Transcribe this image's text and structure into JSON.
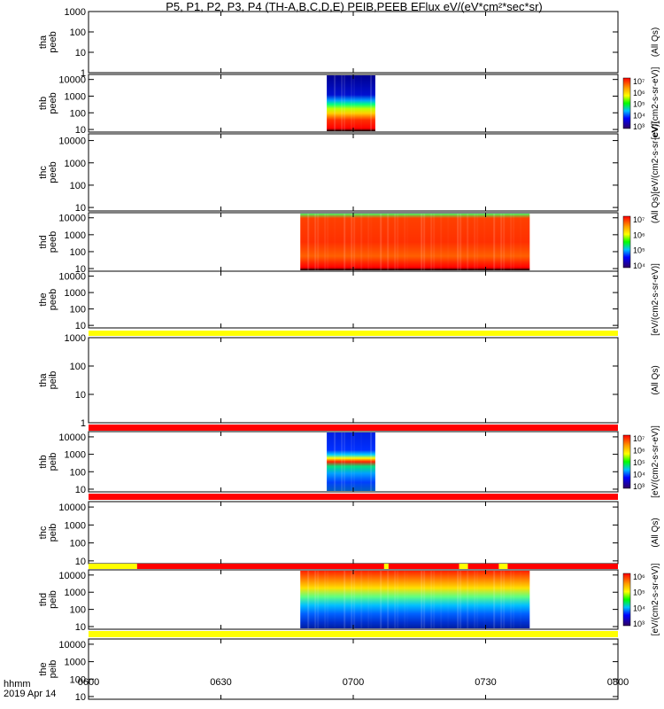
{
  "title": "P5, P1, P2, P3, P4 (TH-A,B,C,D,E) PEIB,PEEB EFlux eV/(eV*cm²*sec*sr)",
  "time_axis": {
    "label": "hhmm",
    "date": "2019 Apr 14",
    "ticks": [
      "0600",
      "0630",
      "0700",
      "0730",
      "0800"
    ],
    "range": [
      "06:00",
      "08:00"
    ]
  },
  "chart_data": [
    {
      "type": "heatmap",
      "panel": "tha-peeb",
      "ylabel": [
        "tha",
        "peeb"
      ],
      "yticks": [
        "1000",
        "100",
        "10",
        "1"
      ],
      "yscale": "log",
      "ylim": [
        1,
        1000
      ],
      "colorbar": null,
      "side_label": "(All Qs)",
      "data": []
    },
    {
      "type": "heatmap",
      "panel": "thb-peeb",
      "ylabel": [
        "thb",
        "peeb"
      ],
      "yticks": [
        "10000",
        "1000",
        "100",
        "10"
      ],
      "yscale": "log",
      "ylim": [
        7,
        20000
      ],
      "colorbar": {
        "ticks": [
          "10⁷",
          "10⁶",
          "10⁵",
          "10⁴",
          "10³"
        ]
      },
      "side_label": "[eV/(cm2-s-sr-eV)]",
      "data": [
        {
          "start": "06:54",
          "end": "07:05",
          "fill": "high-energy-low-flux"
        }
      ]
    },
    {
      "type": "heatmap",
      "panel": "thc-peeb",
      "ylabel": [
        "thc",
        "peeb"
      ],
      "yticks": [
        "10000",
        "1000",
        "100",
        "10"
      ],
      "yscale": "log",
      "ylim": [
        7,
        20000
      ],
      "colorbar": null,
      "side_label": "(All Qs)[eV/(cm2-s-sr-eV)]",
      "data": []
    },
    {
      "type": "heatmap",
      "panel": "thd-peeb",
      "ylabel": [
        "thd",
        "peeb"
      ],
      "yticks": [
        "10000",
        "1000",
        "100",
        "10"
      ],
      "yscale": "log",
      "ylim": [
        7,
        20000
      ],
      "colorbar": {
        "ticks": [
          "10⁷",
          "10⁶",
          "10⁵",
          "10⁴"
        ]
      },
      "side_label": "",
      "data": [
        {
          "start": "06:48",
          "end": "07:40",
          "fill": "broad-high-flux"
        }
      ]
    },
    {
      "type": "heatmap",
      "panel": "the-peeb",
      "ylabel": [
        "the",
        "peeb"
      ],
      "yticks": [
        "10000",
        "1000",
        "100",
        "10"
      ],
      "yscale": "log",
      "ylim": [
        7,
        20000
      ],
      "colorbar": null,
      "side_label": "[eV/(cm2-s-sr-eV)]",
      "data": []
    },
    {
      "type": "heatmap",
      "panel": "tha-peib",
      "ylabel": [
        "tha",
        "peib"
      ],
      "yticks": [
        "1000",
        "100",
        "10",
        "1"
      ],
      "yscale": "log",
      "ylim": [
        1,
        1000
      ],
      "colorbar": null,
      "side_label": "(All Qs)",
      "data": []
    },
    {
      "type": "heatmap",
      "panel": "thb-peib",
      "ylabel": [
        "thb",
        "peib"
      ],
      "yticks": [
        "10000",
        "1000",
        "100",
        "10"
      ],
      "yscale": "log",
      "ylim": [
        7,
        20000
      ],
      "colorbar": {
        "ticks": [
          "10⁷",
          "10⁶",
          "10⁵",
          "10⁴",
          "10³"
        ]
      },
      "side_label": "[eV/(cm2-s-sr-eV)]",
      "data": [
        {
          "start": "06:54",
          "end": "07:05",
          "fill": "ion-band"
        }
      ]
    },
    {
      "type": "heatmap",
      "panel": "thc-peib",
      "ylabel": [
        "thc",
        "peib"
      ],
      "yticks": [
        "10000",
        "1000",
        "100",
        "10"
      ],
      "yscale": "log",
      "ylim": [
        7,
        20000
      ],
      "colorbar": null,
      "side_label": "(All Qs)",
      "data": []
    },
    {
      "type": "heatmap",
      "panel": "thd-peib",
      "ylabel": [
        "thd",
        "peib"
      ],
      "yticks": [
        "10000",
        "1000",
        "100",
        "10"
      ],
      "yscale": "log",
      "ylim": [
        7,
        20000
      ],
      "colorbar": {
        "ticks": [
          "10⁶",
          "10⁵",
          "10⁴",
          "10³"
        ]
      },
      "side_label": "[eV/(cm2-s-sr-eV)]",
      "data": [
        {
          "start": "06:48",
          "end": "07:40",
          "fill": "ion-broad"
        }
      ]
    },
    {
      "type": "heatmap",
      "panel": "the-peib",
      "ylabel": [
        "the",
        "peib"
      ],
      "yticks": [
        "10000",
        "1000",
        "100",
        "10"
      ],
      "yscale": "log",
      "ylim": [
        7,
        20000
      ],
      "colorbar": null,
      "side_label": "",
      "data": []
    }
  ],
  "status_bars": [
    {
      "name": "the-peeb-status",
      "segments": [
        {
          "from": "06:00",
          "to": "08:00",
          "color": "#ffff00"
        }
      ]
    },
    {
      "name": "tha-peib-status",
      "segments": [
        {
          "from": "06:00",
          "to": "08:00",
          "color": "#ff0000"
        }
      ]
    },
    {
      "name": "thb-peib-status",
      "segments": [
        {
          "from": "06:00",
          "to": "08:00",
          "color": "#ff0000"
        }
      ]
    },
    {
      "name": "thc-peib-status",
      "segments": [
        {
          "from": "06:00",
          "to": "06:11",
          "color": "#ffff00"
        },
        {
          "from": "06:11",
          "to": "07:07",
          "color": "#ff0000"
        },
        {
          "from": "07:07",
          "to": "07:08",
          "color": "#ffff00"
        },
        {
          "from": "07:08",
          "to": "07:24",
          "color": "#ff0000"
        },
        {
          "from": "07:24",
          "to": "07:26",
          "color": "#ffff00"
        },
        {
          "from": "07:26",
          "to": "07:33",
          "color": "#ff0000"
        },
        {
          "from": "07:33",
          "to": "07:35",
          "color": "#ffff00"
        },
        {
          "from": "07:35",
          "to": "08:00",
          "color": "#ff0000"
        }
      ]
    },
    {
      "name": "thd-peib-status",
      "segments": [
        {
          "from": "06:00",
          "to": "08:00",
          "color": "#ffff00"
        }
      ]
    }
  ],
  "colors": {
    "high": "#ff0000",
    "mid": "#ffff00",
    "low": "#0000ff",
    "min": "#000080"
  }
}
